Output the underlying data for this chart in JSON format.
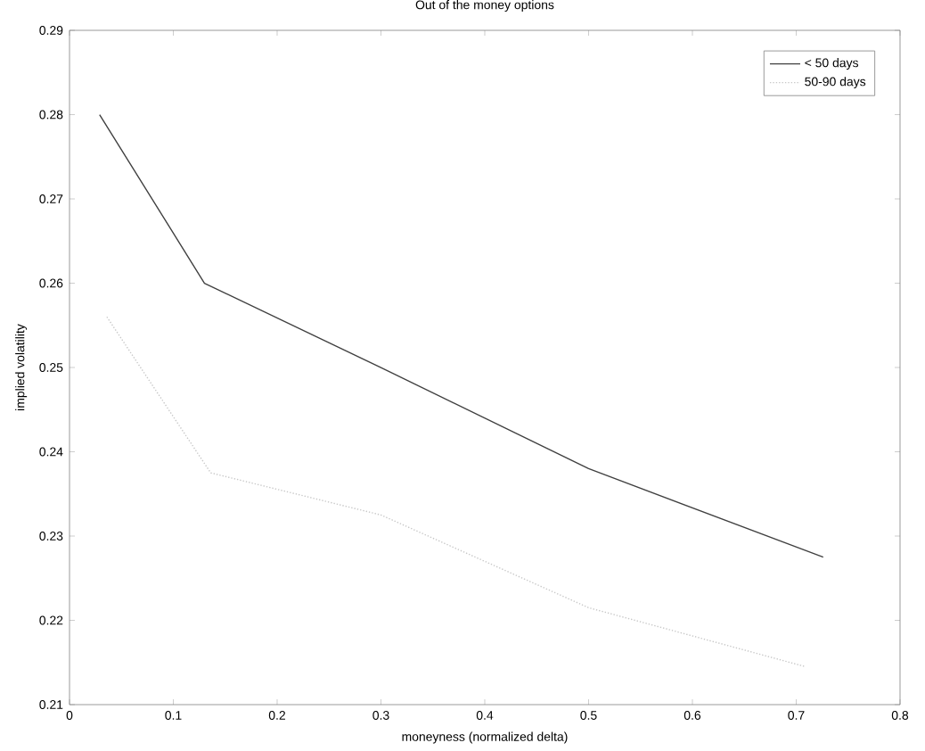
{
  "chart_data": {
    "type": "line",
    "title": "Out of the money options",
    "xlabel": "moneyness (normalized delta)",
    "ylabel": "implied volatility",
    "xlim": [
      0,
      0.8
    ],
    "ylim": [
      0.21,
      0.29
    ],
    "xticks": [
      0,
      0.1,
      0.2,
      0.3,
      0.4,
      0.5,
      0.6,
      0.7,
      0.8
    ],
    "yticks": [
      0.21,
      0.22,
      0.23,
      0.24,
      0.25,
      0.26,
      0.27,
      0.28,
      0.29
    ],
    "legend": "top right",
    "grid": false,
    "marker": "none",
    "series": [
      {
        "name": "< 50 days",
        "color": "#404040",
        "line_style": "solid",
        "x": [
          0.029,
          0.13,
          0.3,
          0.5,
          0.726
        ],
        "values": [
          0.28,
          0.26,
          0.25,
          0.238,
          0.2275
        ]
      },
      {
        "name": "50-90 days",
        "color": "#c8c8c8",
        "line_style": "dotted",
        "x": [
          0.036,
          0.136,
          0.3,
          0.5,
          0.709
        ],
        "values": [
          0.256,
          0.2375,
          0.2325,
          0.2215,
          0.2145
        ]
      }
    ]
  }
}
